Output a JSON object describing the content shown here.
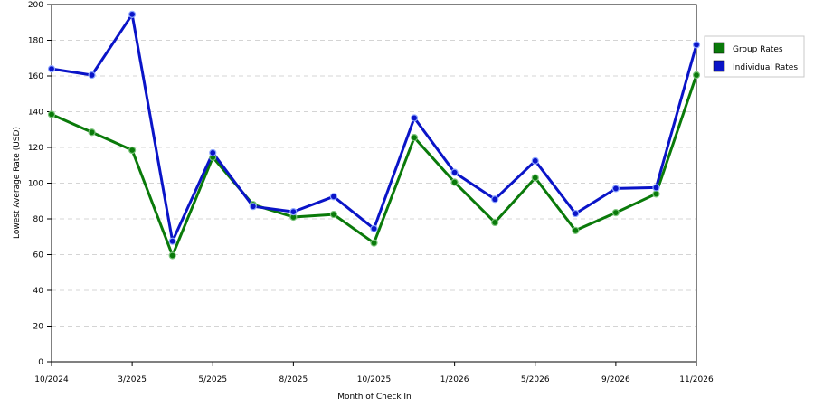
{
  "chart_data": {
    "type": "line",
    "title": "",
    "xlabel": "Month of Check In",
    "ylabel": "Lowest Average Rate (USD)",
    "ylim": [
      0,
      200
    ],
    "yticks": [
      0,
      20,
      40,
      60,
      80,
      100,
      120,
      140,
      160,
      180,
      200
    ],
    "grid": true,
    "legend_position": "right",
    "x_tick_labels": [
      "10/2024",
      "3/2025",
      "5/2025",
      "8/2025",
      "10/2025",
      "1/2026",
      "5/2026",
      "9/2026",
      "11/2026"
    ],
    "x_tick_indices": [
      0,
      2,
      4,
      6,
      8,
      10,
      12,
      14,
      16
    ],
    "point_count": 17,
    "series": [
      {
        "name": "Group Rates",
        "color": "#0a7a0a",
        "values": [
          138.5,
          128.5,
          118.5,
          59.5,
          114.5,
          88.0,
          81.0,
          82.5,
          66.5,
          125.5,
          100.5,
          78.0,
          103.0,
          73.5,
          83.5,
          94.0,
          160.5
        ]
      },
      {
        "name": "Individual Rates",
        "color": "#0a14c8",
        "values": [
          164.0,
          160.5,
          194.5,
          67.5,
          117.0,
          87.0,
          84.0,
          92.5,
          74.5,
          136.5,
          106.0,
          91.0,
          112.5,
          83.0,
          97.0,
          97.5,
          177.5
        ]
      }
    ]
  }
}
